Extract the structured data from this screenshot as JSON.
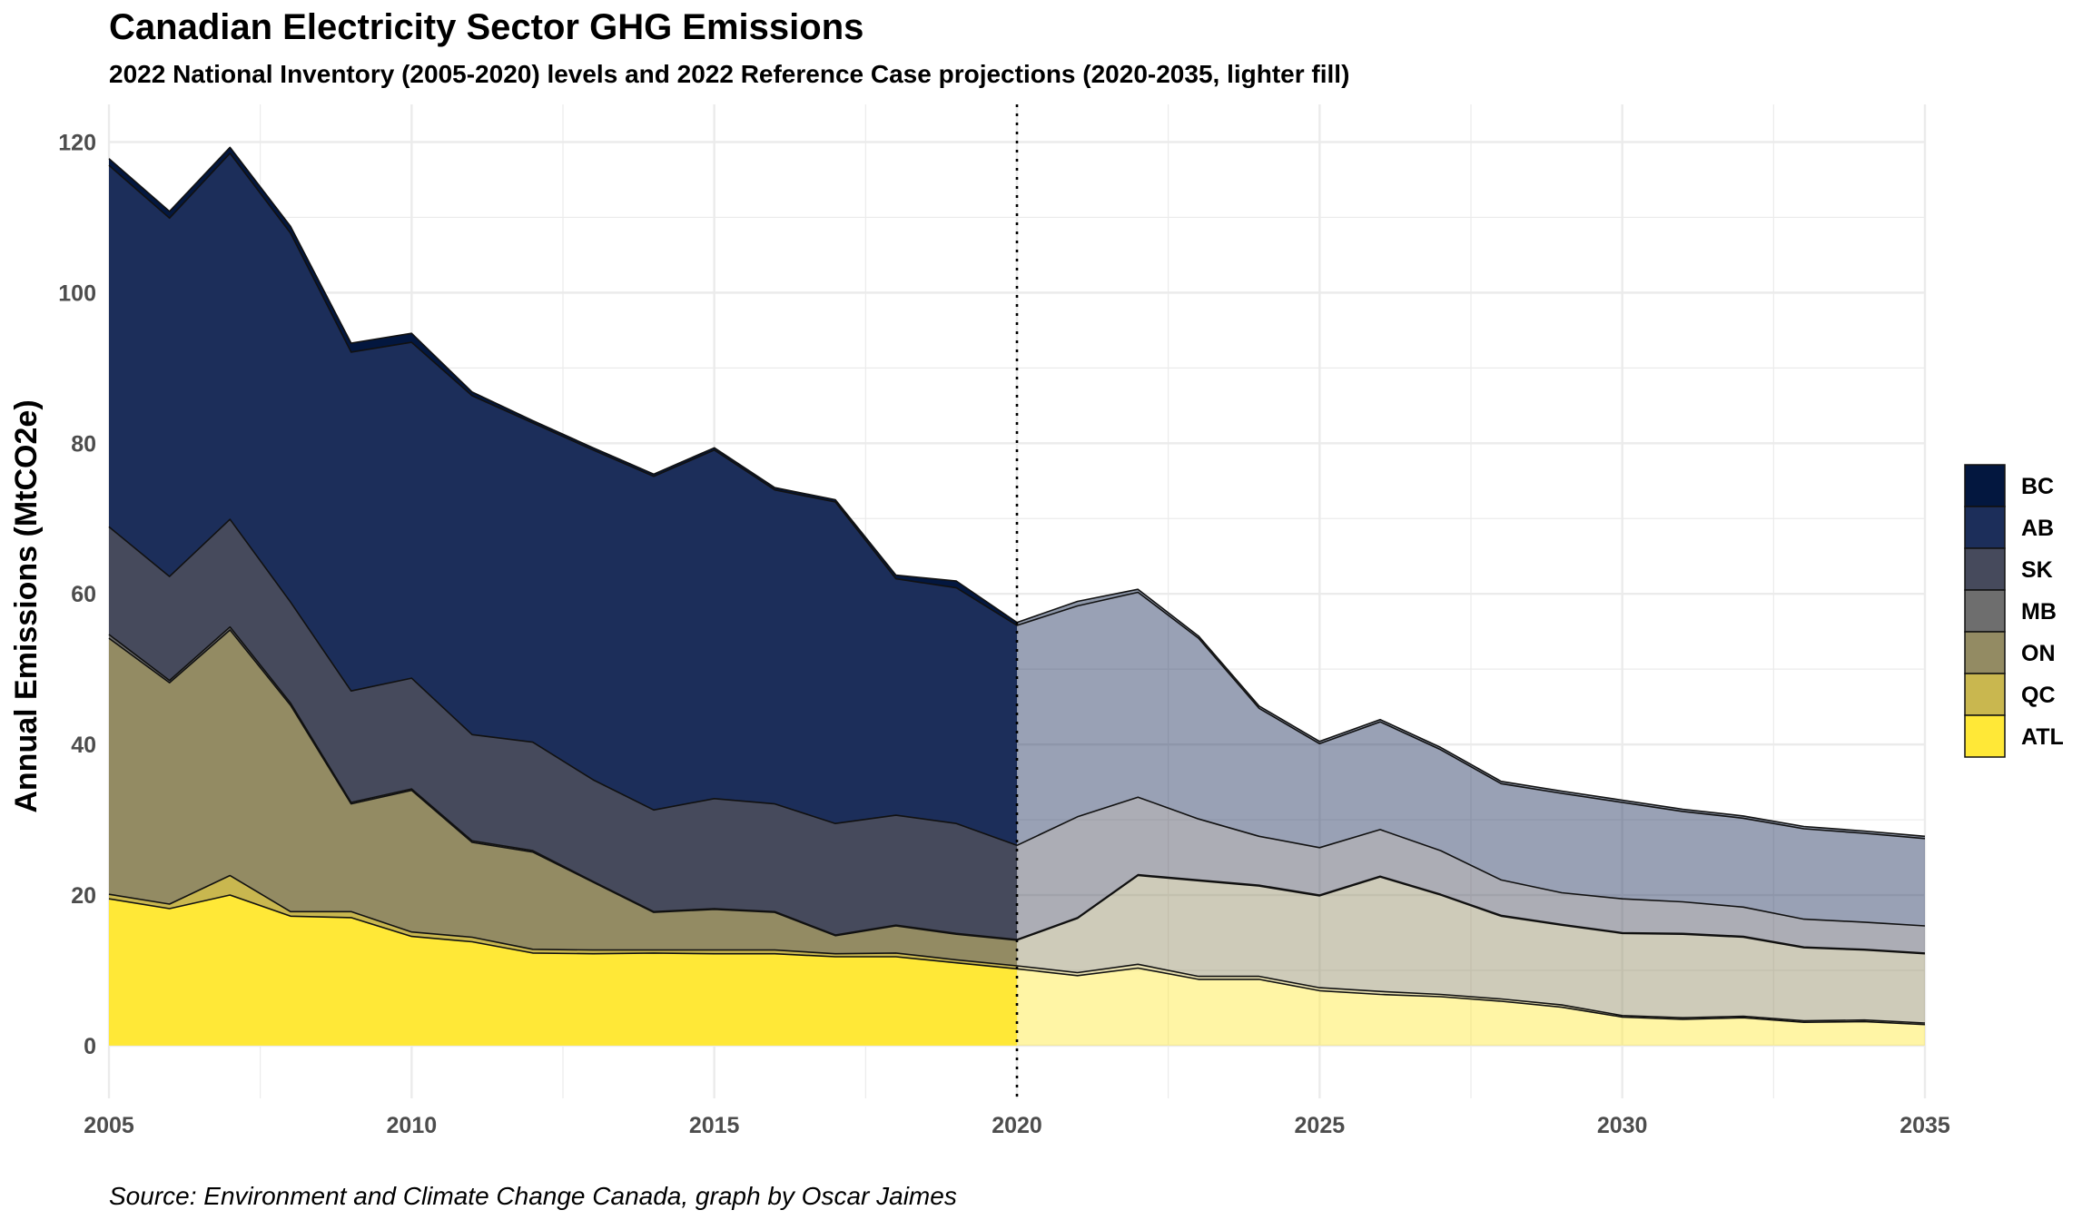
{
  "chart_data": {
    "type": "area",
    "stacked": true,
    "title": "Canadian Electricity Sector GHG Emissions",
    "subtitle": "2022 National Inventory (2005-2020) levels and 2022 Reference Case projections (2020-2035, lighter fill)",
    "caption": "Source: Environment and Climate Change Canada, graph by Oscar Jaimes",
    "xlabel": "",
    "ylabel": "Annual Emissions (MtCO2e)",
    "xlim": [
      2005,
      2035
    ],
    "ylim": [
      -7,
      125
    ],
    "xticks": [
      2005,
      2010,
      2015,
      2020,
      2025,
      2030,
      2035
    ],
    "yticks": [
      0,
      20,
      40,
      60,
      80,
      100,
      120
    ],
    "grid": true,
    "legend_position": "right",
    "divider_year": 2020,
    "projection_start": 2020,
    "x": [
      2005,
      2006,
      2007,
      2008,
      2009,
      2010,
      2011,
      2012,
      2013,
      2014,
      2015,
      2016,
      2017,
      2018,
      2019,
      2020,
      2021,
      2022,
      2023,
      2024,
      2025,
      2026,
      2027,
      2028,
      2029,
      2030,
      2031,
      2032,
      2033,
      2034,
      2035
    ],
    "series": [
      {
        "name": "ATL",
        "color": "#ffe837",
        "values": [
          19.5,
          18.2,
          20.0,
          17.2,
          17.0,
          14.5,
          13.8,
          12.3,
          12.2,
          12.3,
          12.2,
          12.2,
          11.8,
          11.8,
          11.0,
          10.2,
          9.3,
          10.3,
          8.8,
          8.8,
          7.3,
          6.8,
          6.5,
          5.9,
          5.1,
          3.8,
          3.5,
          3.7,
          3.1,
          3.2,
          2.8
        ]
      },
      {
        "name": "QC",
        "color": "#c9b74f",
        "values": [
          0.6,
          0.6,
          2.6,
          0.6,
          0.8,
          0.6,
          0.6,
          0.5,
          0.5,
          0.4,
          0.5,
          0.5,
          0.4,
          0.5,
          0.4,
          0.4,
          0.4,
          0.5,
          0.4,
          0.4,
          0.4,
          0.4,
          0.3,
          0.3,
          0.3,
          0.2,
          0.2,
          0.2,
          0.2,
          0.2,
          0.2
        ]
      },
      {
        "name": "ON",
        "color": "#938b63",
        "values": [
          34.0,
          29.4,
          32.6,
          27.4,
          14.3,
          18.8,
          12.6,
          12.9,
          9.0,
          5.0,
          5.4,
          5.0,
          2.4,
          3.6,
          3.4,
          3.4,
          7.2,
          11.8,
          12.7,
          12.0,
          12.2,
          15.2,
          13.2,
          11.0,
          10.6,
          10.9,
          11.1,
          10.5,
          9.7,
          9.3,
          9.2
        ]
      },
      {
        "name": "MB",
        "color": "#6e6e6e",
        "values": [
          0.5,
          0.3,
          0.4,
          0.3,
          0.2,
          0.2,
          0.2,
          0.2,
          0.1,
          0.1,
          0.1,
          0.1,
          0.1,
          0.1,
          0.1,
          0.1,
          0.1,
          0.1,
          0.1,
          0.1,
          0.1,
          0.1,
          0.1,
          0.1,
          0.1,
          0.1,
          0.1,
          0.1,
          0.1,
          0.1,
          0.1
        ]
      },
      {
        "name": "SK",
        "color": "#464a5c",
        "values": [
          14.3,
          13.8,
          14.3,
          13.4,
          14.8,
          14.7,
          14.1,
          14.4,
          13.5,
          13.5,
          14.6,
          14.3,
          14.8,
          14.6,
          14.6,
          12.5,
          13.4,
          10.3,
          8.1,
          6.5,
          6.3,
          6.2,
          5.8,
          4.7,
          4.2,
          4.5,
          4.2,
          3.9,
          3.7,
          3.6,
          3.6
        ]
      },
      {
        "name": "AB",
        "color": "#1c2e5a",
        "values": [
          48.0,
          47.6,
          48.6,
          49.0,
          45.0,
          44.6,
          45.0,
          42.4,
          43.8,
          44.3,
          46.3,
          41.7,
          42.7,
          31.4,
          31.3,
          29.2,
          28.0,
          27.2,
          24.0,
          17.0,
          13.8,
          14.3,
          13.4,
          12.8,
          13.2,
          12.8,
          12.0,
          11.8,
          12.0,
          11.8,
          11.6
        ]
      },
      {
        "name": "BC",
        "color": "#03173f",
        "values": [
          0.9,
          0.9,
          0.8,
          0.9,
          1.2,
          1.2,
          0.5,
          0.3,
          0.3,
          0.3,
          0.3,
          0.3,
          0.3,
          0.5,
          0.9,
          0.4,
          0.6,
          0.4,
          0.3,
          0.3,
          0.3,
          0.3,
          0.3,
          0.3,
          0.3,
          0.3,
          0.3,
          0.3,
          0.3,
          0.3,
          0.3
        ]
      }
    ]
  }
}
